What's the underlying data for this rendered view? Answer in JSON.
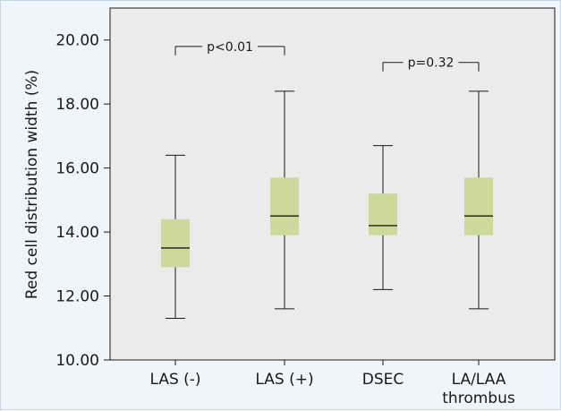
{
  "chart_data": {
    "type": "boxplot",
    "ylabel": "Red cell distribution width (%)",
    "ylim": [
      10,
      21
    ],
    "yticks": [
      "10.00",
      "12.00",
      "14.00",
      "16.00",
      "18.00",
      "20.00"
    ],
    "ytick_values": [
      10,
      12,
      14,
      16,
      18,
      20
    ],
    "categories": [
      {
        "label": [
          "LAS (-)"
        ],
        "min": 11.3,
        "q1": 12.9,
        "median": 13.5,
        "q3": 14.4,
        "max": 16.4
      },
      {
        "label": [
          "LAS (+)"
        ],
        "min": 11.6,
        "q1": 13.9,
        "median": 14.5,
        "q3": 15.7,
        "max": 18.4
      },
      {
        "label": [
          "DSEC"
        ],
        "min": 12.2,
        "q1": 13.9,
        "median": 14.2,
        "q3": 15.2,
        "max": 16.7
      },
      {
        "label": [
          "LA/LAA",
          "thrombus"
        ],
        "min": 11.6,
        "q1": 13.9,
        "median": 14.5,
        "q3": 15.7,
        "max": 18.4
      }
    ],
    "annotations": [
      {
        "from": 0,
        "to": 1,
        "text": "p<0.01",
        "y": 19.8
      },
      {
        "from": 2,
        "to": 3,
        "text": "p=0.32",
        "y": 19.3
      }
    ],
    "colors": {
      "frame_bg": "#eef5fb",
      "plot_bg": "#ebebeb",
      "box_fill": "#ccd99a",
      "line": "#1a1a1a"
    },
    "grid": false
  }
}
